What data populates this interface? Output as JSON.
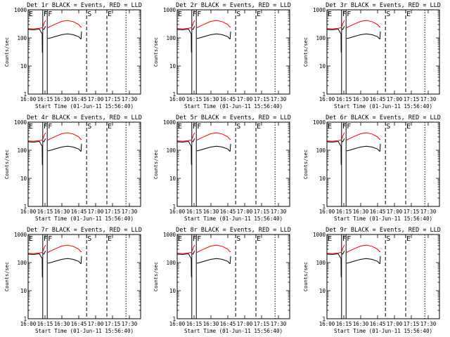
{
  "chart_data": [
    {
      "type": "line",
      "title": "Det 1r BLACK = Events, RED = LLD",
      "xlabel": "Start Time (01-Jun-11 15:56:40)",
      "ylabel": "Counts/sec",
      "yscale": "log",
      "ylim": [
        1,
        1000
      ],
      "xlim": [
        "16:00",
        "17:40"
      ],
      "xticks": [
        "16:00",
        "16:15",
        "16:30",
        "16:45",
        "17:00",
        "17:15",
        "17:30"
      ],
      "yticks": [
        "1",
        "10",
        "100",
        "1000"
      ],
      "grid": false,
      "series": [],
      "markers": [
        {
          "label": "E",
          "time": "16:00",
          "style": "dotted"
        },
        {
          "label": "F",
          "time": "16:13",
          "style": "solid"
        },
        {
          "label": "F",
          "time": "16:17",
          "style": "solid"
        },
        {
          "label": "S",
          "time": "16:52",
          "style": "dashed"
        },
        {
          "label": "E",
          "time": "17:10",
          "style": "dashed"
        },
        {
          "label": "",
          "time": "17:27",
          "style": "dotted"
        }
      ]
    },
    {
      "type": "line",
      "title": "Det 2r BLACK = Events, RED = LLD",
      "xlabel": "Start Time (01-Jun-11 15:56:40)",
      "ylabel": "Counts/sec",
      "yscale": "log",
      "ylim": [
        1,
        1000
      ],
      "xlim": [
        "16:00",
        "17:40"
      ],
      "xticks": [
        "16:00",
        "16:15",
        "16:30",
        "16:45",
        "17:00",
        "17:15",
        "17:30"
      ],
      "yticks": [
        "1",
        "10",
        "100",
        "1000"
      ],
      "grid": false,
      "series": [],
      "markers": [
        {
          "label": "E",
          "time": "16:00",
          "style": "dotted"
        },
        {
          "label": "F",
          "time": "16:13",
          "style": "solid"
        },
        {
          "label": "F",
          "time": "16:17",
          "style": "solid"
        },
        {
          "label": "S",
          "time": "16:52",
          "style": "dashed"
        },
        {
          "label": "E",
          "time": "17:10",
          "style": "dashed"
        },
        {
          "label": "",
          "time": "17:27",
          "style": "dotted"
        }
      ]
    },
    {
      "type": "line",
      "title": "Det 3r BLACK = Events, RED = LLD",
      "xlabel": "Start Time (01-Jun-11 15:56:40)",
      "ylabel": "Counts/sec",
      "yscale": "log",
      "ylim": [
        1,
        1000
      ],
      "xlim": [
        "16:00",
        "17:40"
      ],
      "xticks": [
        "16:00",
        "16:15",
        "16:30",
        "16:45",
        "17:00",
        "17:15",
        "17:30"
      ],
      "yticks": [
        "1",
        "10",
        "100",
        "1000"
      ],
      "grid": false,
      "series": [],
      "markers": [
        {
          "label": "E",
          "time": "16:00",
          "style": "dotted"
        },
        {
          "label": "F",
          "time": "16:13",
          "style": "solid"
        },
        {
          "label": "F",
          "time": "16:17",
          "style": "solid"
        },
        {
          "label": "S",
          "time": "16:52",
          "style": "dashed"
        },
        {
          "label": "E",
          "time": "17:10",
          "style": "dashed"
        },
        {
          "label": "",
          "time": "17:27",
          "style": "dotted"
        }
      ]
    },
    {
      "type": "line",
      "title": "Det 4r BLACK = Events, RED = LLD",
      "xlabel": "Start Time (01-Jun-11 15:56:40)",
      "ylabel": "Counts/sec",
      "yscale": "log",
      "ylim": [
        1,
        1000
      ],
      "xlim": [
        "16:00",
        "17:40"
      ],
      "xticks": [
        "16:00",
        "16:15",
        "16:30",
        "16:45",
        "17:00",
        "17:15",
        "17:30"
      ],
      "yticks": [
        "1",
        "10",
        "100",
        "1000"
      ],
      "grid": false,
      "series": [],
      "markers": [
        {
          "label": "E",
          "time": "16:00",
          "style": "dotted"
        },
        {
          "label": "F",
          "time": "16:13",
          "style": "solid"
        },
        {
          "label": "F",
          "time": "16:17",
          "style": "solid"
        },
        {
          "label": "S",
          "time": "16:52",
          "style": "dashed"
        },
        {
          "label": "E",
          "time": "17:10",
          "style": "dashed"
        },
        {
          "label": "",
          "time": "17:27",
          "style": "dotted"
        }
      ]
    },
    {
      "type": "line",
      "title": "Det 5r BLACK = Events, RED = LLD",
      "xlabel": "Start Time (01-Jun-11 15:56:40)",
      "ylabel": "Counts/sec",
      "yscale": "log",
      "ylim": [
        1,
        1000
      ],
      "xlim": [
        "16:00",
        "17:40"
      ],
      "xticks": [
        "16:00",
        "16:15",
        "16:30",
        "16:45",
        "17:00",
        "17:15",
        "17:30"
      ],
      "yticks": [
        "1",
        "10",
        "100",
        "1000"
      ],
      "grid": false,
      "series": [],
      "markers": [
        {
          "label": "E",
          "time": "16:00",
          "style": "dotted"
        },
        {
          "label": "F",
          "time": "16:13",
          "style": "solid"
        },
        {
          "label": "F",
          "time": "16:17",
          "style": "solid"
        },
        {
          "label": "S",
          "time": "16:52",
          "style": "dashed"
        },
        {
          "label": "E",
          "time": "17:10",
          "style": "dashed"
        },
        {
          "label": "",
          "time": "17:27",
          "style": "dotted"
        }
      ]
    },
    {
      "type": "line",
      "title": "Det 6r BLACK = Events, RED = LLD",
      "xlabel": "Start Time (01-Jun-11 15:56:40)",
      "ylabel": "Counts/sec",
      "yscale": "log",
      "ylim": [
        1,
        1000
      ],
      "xlim": [
        "16:00",
        "17:40"
      ],
      "xticks": [
        "16:00",
        "16:15",
        "16:30",
        "16:45",
        "17:00",
        "17:15",
        "17:30"
      ],
      "yticks": [
        "1",
        "10",
        "100",
        "1000"
      ],
      "grid": false,
      "series": [],
      "markers": [
        {
          "label": "E",
          "time": "16:00",
          "style": "dotted"
        },
        {
          "label": "F",
          "time": "16:13",
          "style": "solid"
        },
        {
          "label": "F",
          "time": "16:17",
          "style": "solid"
        },
        {
          "label": "S",
          "time": "16:52",
          "style": "dashed"
        },
        {
          "label": "E",
          "time": "17:10",
          "style": "dashed"
        },
        {
          "label": "",
          "time": "17:27",
          "style": "dotted"
        }
      ]
    },
    {
      "type": "line",
      "title": "Det 7r BLACK = Events, RED = LLD",
      "xlabel": "Start Time (01-Jun-11 15:56:40)",
      "ylabel": "Counts/sec",
      "yscale": "log",
      "ylim": [
        1,
        1000
      ],
      "xlim": [
        "16:00",
        "17:40"
      ],
      "xticks": [
        "16:00",
        "16:15",
        "16:30",
        "16:45",
        "17:00",
        "17:15",
        "17:30"
      ],
      "yticks": [
        "1",
        "10",
        "100",
        "1000"
      ],
      "grid": false,
      "series": [],
      "markers": [
        {
          "label": "E",
          "time": "16:00",
          "style": "dotted"
        },
        {
          "label": "F",
          "time": "16:13",
          "style": "solid"
        },
        {
          "label": "F",
          "time": "16:17",
          "style": "solid"
        },
        {
          "label": "S",
          "time": "16:52",
          "style": "dashed"
        },
        {
          "label": "E",
          "time": "17:10",
          "style": "dashed"
        },
        {
          "label": "",
          "time": "17:27",
          "style": "dotted"
        }
      ]
    },
    {
      "type": "line",
      "title": "Det 8r BLACK = Events, RED = LLD",
      "xlabel": "Start Time (01-Jun-11 15:56:40)",
      "ylabel": "Counts/sec",
      "yscale": "log",
      "ylim": [
        1,
        1000
      ],
      "xlim": [
        "16:00",
        "17:40"
      ],
      "xticks": [
        "16:00",
        "16:15",
        "16:30",
        "16:45",
        "17:00",
        "17:15",
        "17:30"
      ],
      "yticks": [
        "1",
        "10",
        "100",
        "1000"
      ],
      "grid": false,
      "series": [],
      "markers": [
        {
          "label": "E",
          "time": "16:00",
          "style": "dotted"
        },
        {
          "label": "F",
          "time": "16:13",
          "style": "solid"
        },
        {
          "label": "F",
          "time": "16:17",
          "style": "solid"
        },
        {
          "label": "S",
          "time": "16:52",
          "style": "dashed"
        },
        {
          "label": "E",
          "time": "17:10",
          "style": "dashed"
        },
        {
          "label": "",
          "time": "17:27",
          "style": "dotted"
        }
      ]
    },
    {
      "type": "line",
      "title": "Det 9r BLACK = Events, RED = LLD",
      "xlabel": "Start Time (01-Jun-11 15:56:40)",
      "ylabel": "Counts/sec",
      "yscale": "log",
      "ylim": [
        1,
        1000
      ],
      "xlim": [
        "16:00",
        "17:40"
      ],
      "xticks": [
        "16:00",
        "16:15",
        "16:30",
        "16:45",
        "17:00",
        "17:15",
        "17:30"
      ],
      "yticks": [
        "1",
        "10",
        "100",
        "1000"
      ],
      "grid": false,
      "series": [],
      "markers": [
        {
          "label": "E",
          "time": "16:00",
          "style": "dotted"
        },
        {
          "label": "F",
          "time": "16:13",
          "style": "solid"
        },
        {
          "label": "F",
          "time": "16:17",
          "style": "solid"
        },
        {
          "label": "S",
          "time": "16:52",
          "style": "dashed"
        },
        {
          "label": "E",
          "time": "17:10",
          "style": "dashed"
        },
        {
          "label": "",
          "time": "17:27",
          "style": "dotted"
        }
      ]
    }
  ],
  "series_template": [
    {
      "name": "Events",
      "color": "#000000",
      "segments": [
        {
          "t": [
            "16:00",
            "16:05",
            "16:10",
            "16:12.5"
          ],
          "y": [
            200,
            195,
            205,
            140
          ]
        },
        {
          "t": [
            "16:12.5",
            "16:12.6"
          ],
          "y": [
            140,
            30
          ]
        },
        {
          "t": [
            "16:13.5",
            "16:14",
            "16:15.5"
          ],
          "y": [
            210,
            200,
            260
          ]
        },
        {
          "t": [
            "16:17.5",
            "16:20",
            "16:25",
            "16:30",
            "16:35",
            "16:40",
            "16:45",
            "16:47"
          ],
          "y": [
            95,
            100,
            115,
            130,
            140,
            130,
            110,
            90
          ]
        },
        {
          "t": [
            "16:47",
            "16:47.5"
          ],
          "y": [
            90,
            170
          ]
        }
      ]
    },
    {
      "name": "LLD",
      "color": "#ff0000",
      "segments": [
        {
          "t": [
            "16:00",
            "16:05",
            "16:10",
            "16:12.5"
          ],
          "y": [
            215,
            210,
            220,
            230
          ]
        },
        {
          "t": [
            "16:13.5",
            "16:14",
            "16:15.5"
          ],
          "y": [
            260,
            320,
            420
          ]
        },
        {
          "t": [
            "16:17.5",
            "16:20",
            "16:25",
            "16:30",
            "16:35",
            "16:40",
            "16:45",
            "16:47"
          ],
          "y": [
            230,
            260,
            320,
            390,
            420,
            380,
            300,
            240
          ]
        },
        {
          "t": [
            "16:47",
            "16:47.5"
          ],
          "y": [
            240,
            250
          ]
        }
      ]
    }
  ]
}
